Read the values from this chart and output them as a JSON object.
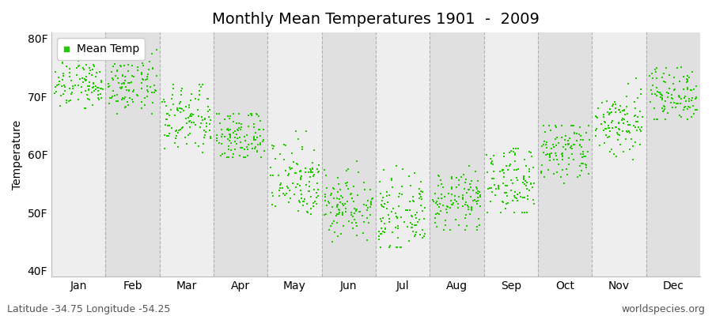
{
  "title": "Monthly Mean Temperatures 1901  -  2009",
  "ylabel": "Temperature",
  "footer_left": "Latitude -34.75 Longitude -54.25",
  "footer_right": "worldspecies.org",
  "legend_label": "Mean Temp",
  "dot_color": "#22CC00",
  "fig_bg_color": "#FFFFFF",
  "plot_bg_color": "#EEEEEE",
  "alt_band_color": "#E0E0E0",
  "yticks": [
    40,
    50,
    60,
    70,
    80
  ],
  "ytick_labels": [
    "40F",
    "50F",
    "60F",
    "70F",
    "80F"
  ],
  "ylim": [
    39,
    81
  ],
  "month_names": [
    "Jan",
    "Feb",
    "Mar",
    "Apr",
    "May",
    "Jun",
    "Jul",
    "Aug",
    "Sep",
    "Oct",
    "Nov",
    "Dec"
  ],
  "month_means": [
    72.5,
    72.0,
    66.0,
    63.0,
    56.0,
    51.5,
    49.5,
    52.0,
    55.5,
    60.5,
    65.5,
    70.5
  ],
  "month_stds": [
    2.5,
    2.5,
    3.0,
    2.5,
    3.5,
    3.0,
    3.0,
    2.5,
    3.0,
    3.0,
    3.0,
    2.5
  ],
  "month_mins": [
    68.0,
    67.0,
    59.0,
    59.5,
    46.0,
    45.0,
    44.0,
    47.0,
    50.0,
    55.0,
    59.0,
    66.0
  ],
  "month_maxs": [
    78.0,
    78.0,
    72.0,
    67.0,
    64.0,
    59.0,
    58.0,
    58.0,
    61.0,
    65.0,
    74.0,
    75.0
  ],
  "n_points": 109,
  "dot_size": 4,
  "title_fontsize": 14,
  "axis_fontsize": 10,
  "tick_fontsize": 10,
  "legend_fontsize": 10,
  "footer_fontsize": 9
}
